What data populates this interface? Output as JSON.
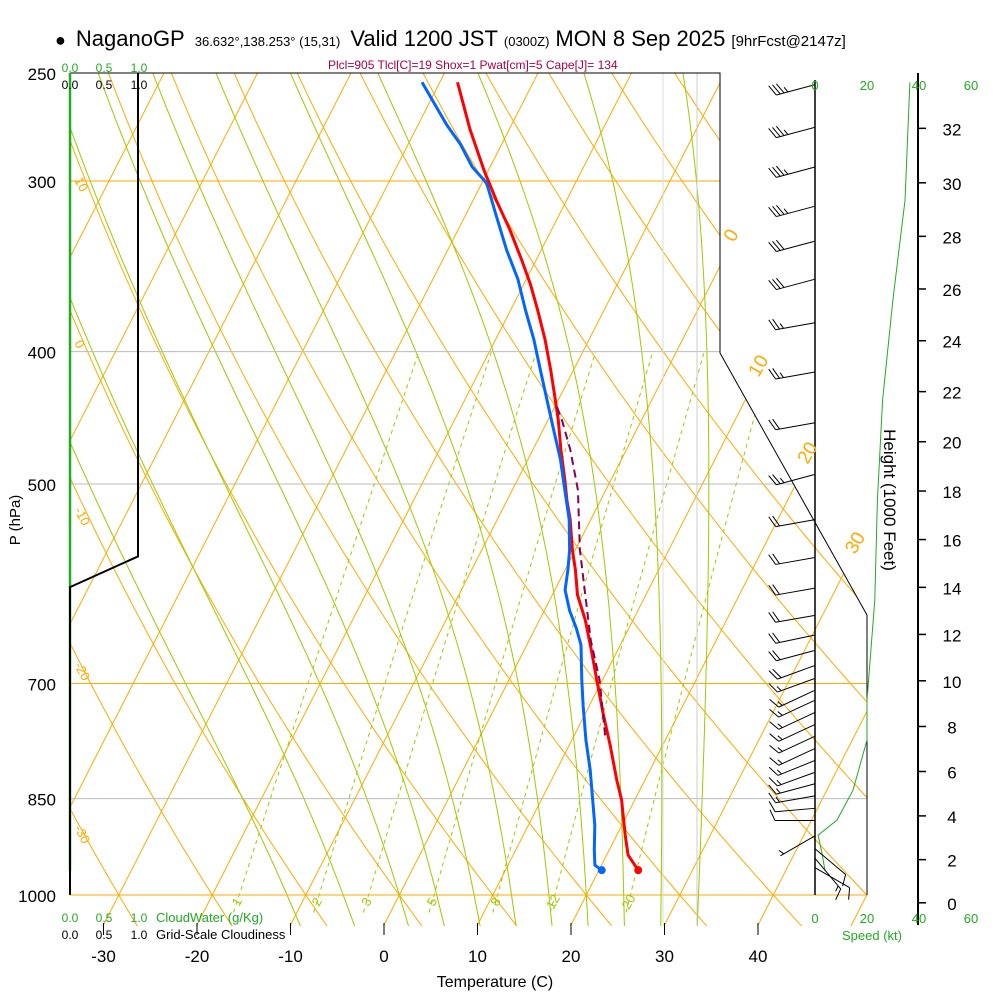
{
  "header": {
    "station": "NaganoGP",
    "coords": "36.632°,138.253° (15,31)",
    "valid": "Valid 1200 JST",
    "utc": "(0300Z)",
    "date": "MON 8 Sep 2025",
    "forecast": "[9hrFcst@2147z]",
    "indices": "Plcl=905 Tlcl[C]=19 Shox=1 Pwat[cm]=5 Cape[J]= 134"
  },
  "colors": {
    "temperature": "#ff0000",
    "dewpoint": "#0066ff",
    "parcel": "#880055",
    "isotherm": "#ffaa00",
    "moist_adiabat": "#99cc00",
    "mixing_ratio": "#99cc00",
    "green_text": "#22aa22",
    "indices": "#aa0044"
  },
  "chart_data": {
    "type": "line",
    "subtype": "skew-T log-P",
    "title": "NaganoGP Valid 1200 JST (0300Z) MON 8 Sep 2025",
    "xlabel": "Temperature (C)",
    "ylabel": "P (hPa)",
    "y2label": "Height (1000 Feet)",
    "xlim": [
      -35,
      45
    ],
    "ylim": [
      1000,
      250
    ],
    "x_ticks": [
      "-30",
      "-20",
      "-10",
      "0",
      "10",
      "20",
      "30",
      "40"
    ],
    "p_ticks": [
      "250",
      "300",
      "400",
      "500",
      "700",
      "850",
      "1000"
    ],
    "height_ticks": [
      "0",
      "2",
      "4",
      "6",
      "8",
      "10",
      "12",
      "14",
      "16",
      "18",
      "20",
      "22",
      "24",
      "26",
      "28",
      "30",
      "32"
    ],
    "isotherm_labels": [
      "0",
      "10",
      "20",
      "30"
    ],
    "dry_adiabat_labels": [
      "10",
      "0",
      "-10",
      "-20",
      "-30"
    ],
    "mixing_ratio_labels": [
      "1",
      "2",
      "3",
      "5",
      "8",
      "12",
      "20"
    ],
    "series": [
      {
        "name": "Temperature",
        "p": [
          959,
          935,
          904,
          852,
          824,
          777,
          738,
          696,
          662,
          629,
          603,
          578,
          559,
          531,
          514,
          497,
          472,
          449,
          431,
          413,
          392,
          373,
          357,
          343,
          326,
          310,
          295,
          275,
          254
        ],
        "t": [
          24.2,
          22.3,
          20.9,
          18.6,
          17.0,
          14.4,
          12.0,
          9.4,
          7.2,
          4.9,
          2.7,
          1.1,
          -0.3,
          -2.2,
          -3.6,
          -4.9,
          -7.0,
          -8.9,
          -10.6,
          -12.4,
          -14.7,
          -17.1,
          -19.3,
          -21.5,
          -24.4,
          -27.5,
          -30.4,
          -34.2,
          -38.1
        ]
      },
      {
        "name": "Dewpoint",
        "p": [
          959,
          951,
          927,
          889,
          852,
          810,
          770,
          726,
          696,
          656,
          638,
          619,
          598,
          578,
          559,
          531,
          505,
          480,
          457,
          434,
          413,
          392,
          373,
          354,
          337,
          318,
          301,
          293,
          282,
          273,
          254
        ],
        "t": [
          20.3,
          19.3,
          18.4,
          17.1,
          15.5,
          13.6,
          11.5,
          9.3,
          7.8,
          5.8,
          4.4,
          2.7,
          1.1,
          0.3,
          -0.6,
          -2.3,
          -4.4,
          -6.5,
          -8.8,
          -11.2,
          -13.5,
          -15.9,
          -18.4,
          -20.9,
          -23.7,
          -26.7,
          -29.5,
          -31.9,
          -34.4,
          -36.9,
          -41.9
        ]
      },
      {
        "name": "Parcel",
        "p": [
          764,
          696,
          651,
          598,
          559,
          505,
          472,
          449,
          438
        ],
        "t": [
          13.3,
          9.7,
          6.6,
          3.2,
          0.5,
          -3.0,
          -6.0,
          -8.5,
          -9.9
        ]
      }
    ],
    "cloudiness": {
      "label": "Grid-Scale Cloudiness",
      "scale": [
        "0.0",
        "0.5",
        "1.0"
      ],
      "p": [
        250,
        565,
        595,
        1000
      ],
      "v": [
        1,
        1,
        0,
        0
      ]
    },
    "cloudwater": {
      "label": "CloudWater (g/Kg)",
      "scale": [
        "0.0",
        "0.5",
        "1.0"
      ],
      "p": [
        250,
        960
      ],
      "v": [
        0,
        0
      ]
    },
    "wind_speed_axis": {
      "label": "Speed (kt)",
      "ticks": [
        "0",
        "20",
        "40",
        "60"
      ]
    },
    "wind_speed_profile": {
      "p": [
        254,
        310,
        366,
        434,
        514,
        608,
        720,
        770,
        838,
        881,
        904,
        932,
        959
      ],
      "spd": [
        36.5,
        34.6,
        30,
        26,
        24,
        23,
        20,
        20,
        14.6,
        8.5,
        1.2,
        2.7,
        3.8
      ]
    },
    "wind_barbs": [
      {
        "p": 255,
        "dir": 255,
        "spd": 35
      },
      {
        "p": 274,
        "dir": 255,
        "spd": 35
      },
      {
        "p": 293,
        "dir": 255,
        "spd": 35
      },
      {
        "p": 313,
        "dir": 255,
        "spd": 35
      },
      {
        "p": 332,
        "dir": 255,
        "spd": 30
      },
      {
        "p": 354,
        "dir": 255,
        "spd": 30
      },
      {
        "p": 381,
        "dir": 260,
        "spd": 25
      },
      {
        "p": 414,
        "dir": 260,
        "spd": 25
      },
      {
        "p": 451,
        "dir": 260,
        "spd": 20
      },
      {
        "p": 492,
        "dir": 255,
        "spd": 25
      },
      {
        "p": 531,
        "dir": 260,
        "spd": 20
      },
      {
        "p": 566,
        "dir": 260,
        "spd": 20
      },
      {
        "p": 596,
        "dir": 260,
        "spd": 20
      },
      {
        "p": 624,
        "dir": 260,
        "spd": 20
      },
      {
        "p": 645,
        "dir": 258,
        "spd": 20
      },
      {
        "p": 662,
        "dir": 255,
        "spd": 20
      },
      {
        "p": 679,
        "dir": 250,
        "spd": 20
      },
      {
        "p": 694,
        "dir": 250,
        "spd": 15
      },
      {
        "p": 708,
        "dir": 245,
        "spd": 15
      },
      {
        "p": 720,
        "dir": 245,
        "spd": 15
      },
      {
        "p": 735,
        "dir": 245,
        "spd": 15
      },
      {
        "p": 750,
        "dir": 245,
        "spd": 15
      },
      {
        "p": 765,
        "dir": 245,
        "spd": 15
      },
      {
        "p": 781,
        "dir": 245,
        "spd": 15
      },
      {
        "p": 797,
        "dir": 248,
        "spd": 15
      },
      {
        "p": 813,
        "dir": 250,
        "spd": 15
      },
      {
        "p": 829,
        "dir": 255,
        "spd": 15
      },
      {
        "p": 846,
        "dir": 260,
        "spd": 15
      },
      {
        "p": 864,
        "dir": 265,
        "spd": 10
      },
      {
        "p": 882,
        "dir": 270,
        "spd": 10
      },
      {
        "p": 905,
        "dir": 240,
        "spd": 5
      },
      {
        "p": 925,
        "dir": 130,
        "spd": 10
      },
      {
        "p": 940,
        "dir": 140,
        "spd": 15
      },
      {
        "p": 955,
        "dir": 120,
        "spd": 10
      }
    ]
  }
}
